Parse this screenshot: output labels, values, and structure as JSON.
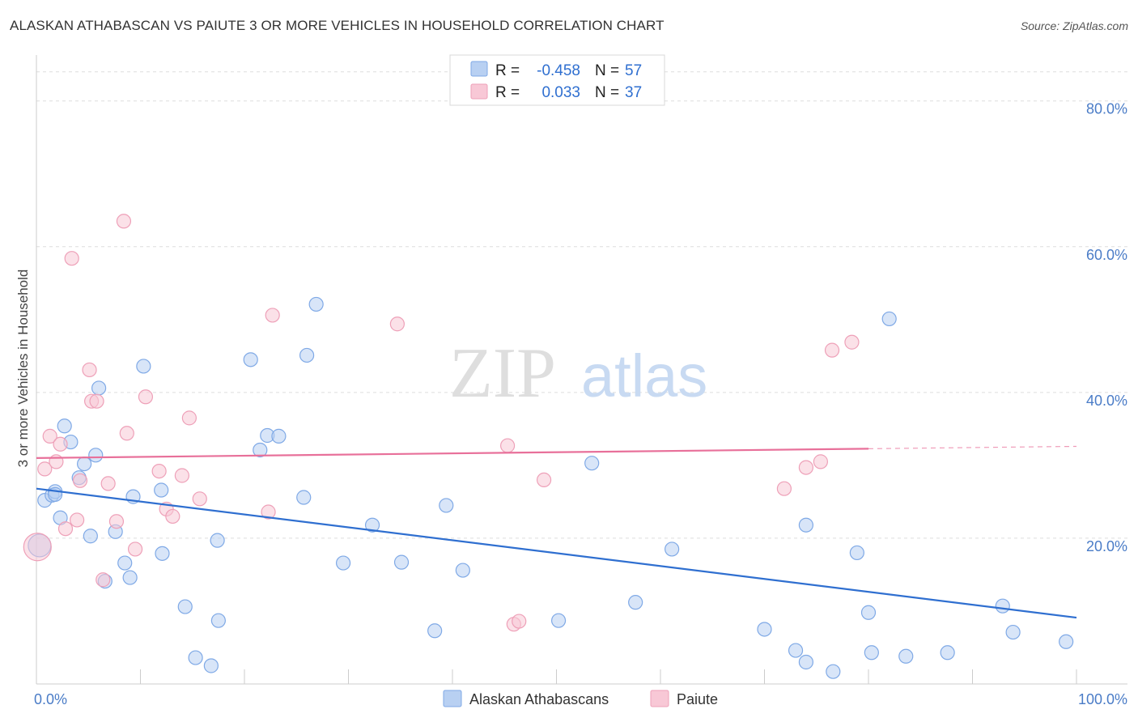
{
  "chart_data": {
    "type": "scatter",
    "title": "ALASKAN ATHABASCAN VS PAIUTE 3 OR MORE VEHICLES IN HOUSEHOLD CORRELATION CHART",
    "source": "Source: ZipAtlas.com",
    "ylabel": "3 or more Vehicles in Household",
    "xlabel": "",
    "xlim": [
      0,
      100
    ],
    "ylim": [
      0,
      86.3
    ],
    "y_ticks": [
      {
        "value": 20,
        "label": "20.0%"
      },
      {
        "value": 40,
        "label": "40.0%"
      },
      {
        "value": 60,
        "label": "60.0%"
      },
      {
        "value": 80,
        "label": "80.0%"
      }
    ],
    "x_tick_labels": {
      "left": "0.0%",
      "right": "100.0%"
    },
    "watermark": {
      "part1": "ZIP",
      "part2": "atlas"
    },
    "legend": {
      "r_label": "R =",
      "n_label": "N =",
      "rows": [
        {
          "series": "Alaskan Athabascans",
          "r": "-0.458",
          "n": "57"
        },
        {
          "series": "Paiute",
          "r": "0.033",
          "n": "37"
        }
      ]
    },
    "series": [
      {
        "name": "Alaskan Athabascans",
        "color": "#7fa9e6",
        "fill": "#b8d0f2",
        "line_color": "#2f6fd0",
        "trend": {
          "x0": 0,
          "y0": 26.8,
          "x1": 100,
          "y1": 9.1,
          "dash_from": null
        },
        "points": [
          {
            "x": 0.3,
            "y": 19.0,
            "r": 14
          },
          {
            "x": 0.8,
            "y": 25.2
          },
          {
            "x": 1.5,
            "y": 25.9
          },
          {
            "x": 1.8,
            "y": 26.4
          },
          {
            "x": 1.8,
            "y": 26.0
          },
          {
            "x": 2.3,
            "y": 22.8
          },
          {
            "x": 2.7,
            "y": 35.4
          },
          {
            "x": 3.3,
            "y": 33.2
          },
          {
            "x": 4.1,
            "y": 28.3
          },
          {
            "x": 4.6,
            "y": 30.2
          },
          {
            "x": 5.2,
            "y": 20.3
          },
          {
            "x": 5.7,
            "y": 31.4
          },
          {
            "x": 6.0,
            "y": 40.6
          },
          {
            "x": 6.6,
            "y": 14.1
          },
          {
            "x": 7.6,
            "y": 20.9
          },
          {
            "x": 8.5,
            "y": 16.6
          },
          {
            "x": 9.0,
            "y": 14.6
          },
          {
            "x": 9.3,
            "y": 25.7
          },
          {
            "x": 10.3,
            "y": 43.6
          },
          {
            "x": 12.0,
            "y": 26.6
          },
          {
            "x": 12.1,
            "y": 17.9
          },
          {
            "x": 14.3,
            "y": 10.6
          },
          {
            "x": 15.3,
            "y": 3.6
          },
          {
            "x": 16.8,
            "y": 2.5
          },
          {
            "x": 17.5,
            "y": 8.7
          },
          {
            "x": 17.4,
            "y": 19.7
          },
          {
            "x": 20.6,
            "y": 44.5
          },
          {
            "x": 21.5,
            "y": 32.1
          },
          {
            "x": 22.2,
            "y": 34.1
          },
          {
            "x": 23.3,
            "y": 34.0
          },
          {
            "x": 25.7,
            "y": 25.6
          },
          {
            "x": 26.0,
            "y": 45.1
          },
          {
            "x": 26.9,
            "y": 52.1
          },
          {
            "x": 29.5,
            "y": 16.6
          },
          {
            "x": 32.3,
            "y": 21.8
          },
          {
            "x": 35.1,
            "y": 16.7
          },
          {
            "x": 38.3,
            "y": 7.3
          },
          {
            "x": 39.4,
            "y": 24.5
          },
          {
            "x": 41.0,
            "y": 15.6
          },
          {
            "x": 50.2,
            "y": 8.7
          },
          {
            "x": 53.4,
            "y": 30.3
          },
          {
            "x": 57.6,
            "y": 11.2
          },
          {
            "x": 61.1,
            "y": 18.5
          },
          {
            "x": 70.0,
            "y": 7.5
          },
          {
            "x": 73.0,
            "y": 4.6
          },
          {
            "x": 74.0,
            "y": 3.0
          },
          {
            "x": 74.0,
            "y": 21.8
          },
          {
            "x": 76.6,
            "y": 1.7
          },
          {
            "x": 78.9,
            "y": 18.0
          },
          {
            "x": 80.0,
            "y": 9.8
          },
          {
            "x": 80.3,
            "y": 4.3
          },
          {
            "x": 82.0,
            "y": 50.1
          },
          {
            "x": 83.6,
            "y": 3.8
          },
          {
            "x": 87.6,
            "y": 4.3
          },
          {
            "x": 92.9,
            "y": 10.7
          },
          {
            "x": 93.9,
            "y": 7.1
          },
          {
            "x": 99.0,
            "y": 5.8
          }
        ]
      },
      {
        "name": "Paiute",
        "color": "#eea0b8",
        "fill": "#f8c8d6",
        "line_color": "#e8709a",
        "trend": {
          "x0": 0,
          "y0": 31.0,
          "x1": 100,
          "y1": 32.6,
          "dash_from": 80
        },
        "points": [
          {
            "x": 0.1,
            "y": 18.8,
            "r": 17
          },
          {
            "x": 0.8,
            "y": 29.5
          },
          {
            "x": 1.3,
            "y": 34.0
          },
          {
            "x": 1.9,
            "y": 30.5
          },
          {
            "x": 2.3,
            "y": 32.9
          },
          {
            "x": 2.8,
            "y": 21.3
          },
          {
            "x": 3.4,
            "y": 58.4
          },
          {
            "x": 3.9,
            "y": 22.5
          },
          {
            "x": 4.2,
            "y": 27.9
          },
          {
            "x": 5.1,
            "y": 43.1
          },
          {
            "x": 5.3,
            "y": 38.8
          },
          {
            "x": 5.8,
            "y": 38.8
          },
          {
            "x": 6.4,
            "y": 14.3
          },
          {
            "x": 6.9,
            "y": 27.5
          },
          {
            "x": 7.7,
            "y": 22.3
          },
          {
            "x": 8.4,
            "y": 63.5
          },
          {
            "x": 8.7,
            "y": 34.4
          },
          {
            "x": 9.5,
            "y": 18.5
          },
          {
            "x": 10.5,
            "y": 39.4
          },
          {
            "x": 11.8,
            "y": 29.2
          },
          {
            "x": 12.5,
            "y": 24.0
          },
          {
            "x": 13.1,
            "y": 23.0
          },
          {
            "x": 14.0,
            "y": 28.6
          },
          {
            "x": 14.7,
            "y": 36.5
          },
          {
            "x": 15.7,
            "y": 25.4
          },
          {
            "x": 22.3,
            "y": 23.6
          },
          {
            "x": 22.7,
            "y": 50.6
          },
          {
            "x": 34.7,
            "y": 49.4
          },
          {
            "x": 45.3,
            "y": 32.7
          },
          {
            "x": 45.9,
            "y": 8.2
          },
          {
            "x": 46.4,
            "y": 8.6
          },
          {
            "x": 48.8,
            "y": 28.0
          },
          {
            "x": 71.9,
            "y": 26.8
          },
          {
            "x": 74.0,
            "y": 29.7
          },
          {
            "x": 75.4,
            "y": 30.5
          },
          {
            "x": 76.5,
            "y": 45.8
          },
          {
            "x": 78.4,
            "y": 46.9
          }
        ]
      }
    ]
  }
}
